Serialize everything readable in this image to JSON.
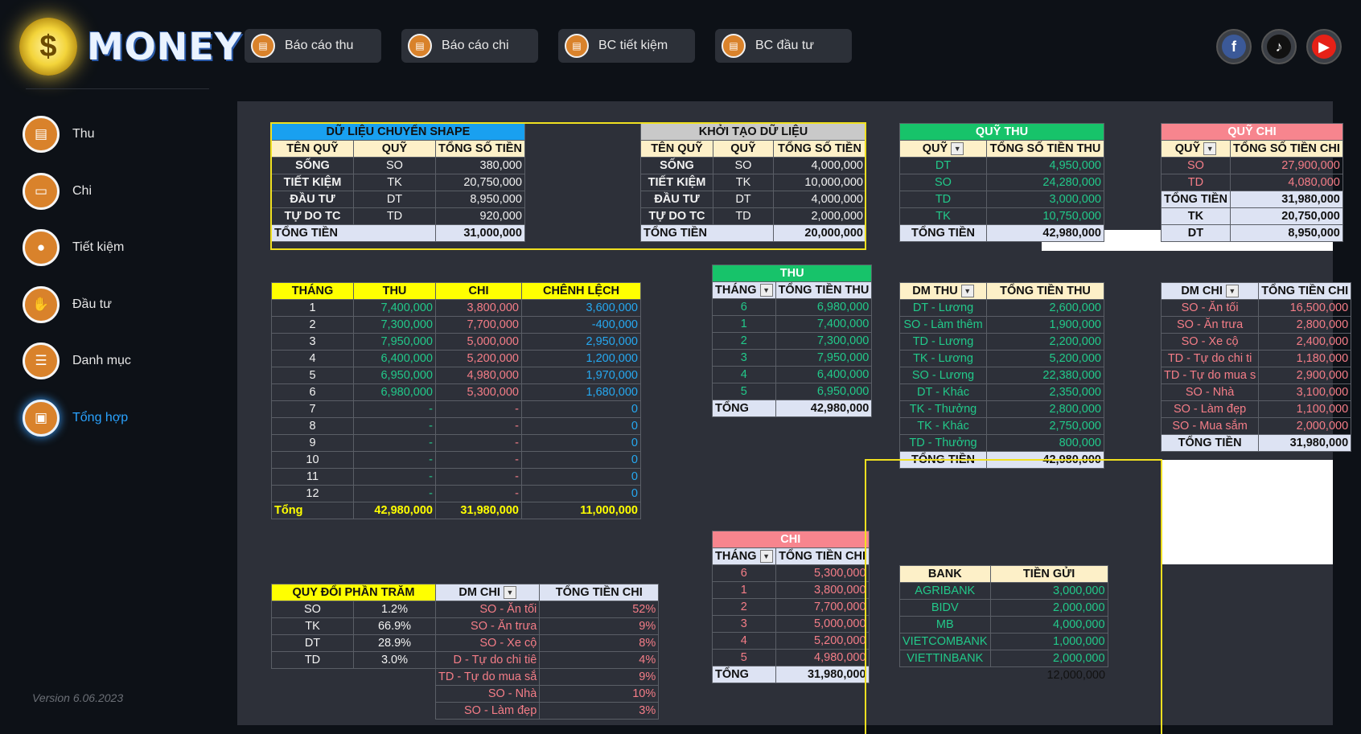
{
  "app": {
    "title": "MONEY",
    "version": "Version 6.06.2023"
  },
  "nav": [
    {
      "label": "Thu",
      "icon": "receipt-icon"
    },
    {
      "label": "Chi",
      "icon": "wallet-icon"
    },
    {
      "label": "Tiết kiệm",
      "icon": "piggy-bank-icon"
    },
    {
      "label": "Đầu tư",
      "icon": "handshake-icon"
    },
    {
      "label": "Danh mục",
      "icon": "clipboard-icon"
    },
    {
      "label": "Tổng hợp",
      "icon": "dashboard-icon"
    }
  ],
  "top_buttons": [
    "Báo cáo thu",
    "Báo cáo chi",
    "BC tiết kiệm",
    "BC đầu tư"
  ],
  "social": [
    {
      "name": "facebook",
      "glyph": "f",
      "color": "#3b5998"
    },
    {
      "name": "tiktok",
      "glyph": "♪",
      "color": "#111111"
    },
    {
      "name": "youtube",
      "glyph": "▶",
      "color": "#e62117"
    }
  ],
  "shape_data": {
    "title": "DỮ LIỆU CHUYỂN SHAPE",
    "headers": [
      "TÊN QUỸ",
      "QUỸ",
      "TỔNG SỐ TIỀN"
    ],
    "rows": [
      [
        "SỐNG",
        "SO",
        "380,000"
      ],
      [
        "TIẾT KIỆM",
        "TK",
        "20,750,000"
      ],
      [
        "ĐẦU TƯ",
        "DT",
        "8,950,000"
      ],
      [
        "TỰ DO TC",
        "TD",
        "920,000"
      ]
    ],
    "total_label": "TỔNG TIỀN",
    "total": "31,000,000"
  },
  "init_data": {
    "title": "KHỞI TẠO DỮ LIỆU",
    "headers": [
      "TÊN QUỸ",
      "QUỸ",
      "TỔNG SỐ TIỀN"
    ],
    "rows": [
      [
        "SỐNG",
        "SO",
        "4,000,000"
      ],
      [
        "TIẾT KIỆM",
        "TK",
        "10,000,000"
      ],
      [
        "ĐẦU TƯ",
        "DT",
        "4,000,000"
      ],
      [
        "TỰ DO TC",
        "TD",
        "2,000,000"
      ]
    ],
    "total_label": "TỔNG TIỀN",
    "total": "20,000,000"
  },
  "quy_thu": {
    "title": "QUỸ THU",
    "headers": [
      "QUỸ",
      "TỔNG SỐ TIỀN THU"
    ],
    "rows": [
      [
        "DT",
        "4,950,000"
      ],
      [
        "SO",
        "24,280,000"
      ],
      [
        "TD",
        "3,000,000"
      ],
      [
        "TK",
        "10,750,000"
      ]
    ],
    "total_label": "TỔNG TIỀN",
    "total": "42,980,000"
  },
  "quy_chi": {
    "title": "QUỸ CHI",
    "headers": [
      "QUỸ",
      "TỔNG SỐ TIỀN CHI"
    ],
    "rows": [
      [
        "SO",
        "27,900,000"
      ],
      [
        "TD",
        "4,080,000"
      ]
    ],
    "total_label": "TỔNG TIỀN",
    "total": "31,980,000",
    "extra": [
      [
        "TK",
        "20,750,000"
      ],
      [
        "DT",
        "8,950,000"
      ]
    ]
  },
  "monthly": {
    "headers": [
      "THÁNG",
      "THU",
      "CHI",
      "CHÊNH LỆCH"
    ],
    "rows": [
      [
        "1",
        "7,400,000",
        "3,800,000",
        "3,600,000"
      ],
      [
        "2",
        "7,300,000",
        "7,700,000",
        "-400,000"
      ],
      [
        "3",
        "7,950,000",
        "5,000,000",
        "2,950,000"
      ],
      [
        "4",
        "6,400,000",
        "5,200,000",
        "1,200,000"
      ],
      [
        "5",
        "6,950,000",
        "4,980,000",
        "1,970,000"
      ],
      [
        "6",
        "6,980,000",
        "5,300,000",
        "1,680,000"
      ],
      [
        "7",
        "-",
        "-",
        "0"
      ],
      [
        "8",
        "-",
        "-",
        "0"
      ],
      [
        "9",
        "-",
        "-",
        "0"
      ],
      [
        "10",
        "-",
        "-",
        "0"
      ],
      [
        "11",
        "-",
        "-",
        "0"
      ],
      [
        "12",
        "-",
        "-",
        "0"
      ]
    ],
    "total": [
      "Tổng",
      "42,980,000",
      "31,980,000",
      "11,000,000"
    ]
  },
  "thu_by_month": {
    "title": "THU",
    "headers": [
      "THÁNG",
      "TỔNG TIỀN THU"
    ],
    "rows": [
      [
        "6",
        "6,980,000"
      ],
      [
        "1",
        "7,400,000"
      ],
      [
        "2",
        "7,300,000"
      ],
      [
        "3",
        "7,950,000"
      ],
      [
        "4",
        "6,400,000"
      ],
      [
        "5",
        "6,950,000"
      ]
    ],
    "total": [
      "TỔNG",
      "42,980,000"
    ]
  },
  "chi_by_month": {
    "title": "CHI",
    "headers": [
      "THÁNG",
      "TỔNG TIỀN CHI"
    ],
    "rows": [
      [
        "6",
        "5,300,000"
      ],
      [
        "1",
        "3,800,000"
      ],
      [
        "2",
        "7,700,000"
      ],
      [
        "3",
        "5,000,000"
      ],
      [
        "4",
        "5,200,000"
      ],
      [
        "5",
        "4,980,000"
      ]
    ],
    "total": [
      "TỔNG",
      "31,980,000"
    ]
  },
  "dm_thu": {
    "headers": [
      "DM THU",
      "TỔNG TIỀN THU"
    ],
    "rows": [
      [
        "DT - Lương",
        "2,600,000"
      ],
      [
        "SO - Làm thêm",
        "1,900,000"
      ],
      [
        "TD - Lương",
        "2,200,000"
      ],
      [
        "TK - Lương",
        "5,200,000"
      ],
      [
        "SO - Lương",
        "22,380,000"
      ],
      [
        "DT - Khác",
        "2,350,000"
      ],
      [
        "TK - Thưởng",
        "2,800,000"
      ],
      [
        "TK - Khác",
        "2,750,000"
      ],
      [
        "TD - Thưởng",
        "800,000"
      ]
    ],
    "total": [
      "TỔNG TIỀN",
      "42,980,000"
    ]
  },
  "dm_chi_right": {
    "headers": [
      "DM CHI",
      "TỔNG TIỀN CHI"
    ],
    "rows": [
      [
        "SO - Ăn tối",
        "16,500,000"
      ],
      [
        "SO - Ăn trưa",
        "2,800,000"
      ],
      [
        "SO - Xe cộ",
        "2,400,000"
      ],
      [
        "TD - Tự do chi ti",
        "1,180,000"
      ],
      [
        "TD - Tự do mua s",
        "2,900,000"
      ],
      [
        "SO - Nhà",
        "3,100,000"
      ],
      [
        "SO - Làm đẹp",
        "1,100,000"
      ],
      [
        "SO - Mua sắm",
        "2,000,000"
      ]
    ],
    "total": [
      "TỔNG TIỀN",
      "31,980,000"
    ]
  },
  "percent": {
    "title": "QUY ĐỔI PHẦN TRĂM",
    "rows": [
      [
        "SO",
        "1.2%"
      ],
      [
        "TK",
        "66.9%"
      ],
      [
        "DT",
        "28.9%"
      ],
      [
        "TD",
        "3.0%"
      ]
    ]
  },
  "dm_chi_left": {
    "headers": [
      "DM CHI",
      "TỔNG TIỀN CHI"
    ],
    "rows": [
      [
        "SO - Ăn tối",
        "52%"
      ],
      [
        "SO - Ăn trưa",
        "9%"
      ],
      [
        "SO - Xe cộ",
        "8%"
      ],
      [
        "D - Tự do chi tiê",
        "4%"
      ],
      [
        "TD - Tự do mua sắ",
        "9%"
      ],
      [
        "SO - Nhà",
        "10%"
      ],
      [
        "SO - Làm đẹp",
        "3%"
      ]
    ]
  },
  "bank": {
    "headers": [
      "BANK",
      "TIỀN GỬI"
    ],
    "rows": [
      [
        "AGRIBANK",
        "3,000,000"
      ],
      [
        "BIDV",
        "2,000,000"
      ],
      [
        "MB",
        "4,000,000"
      ],
      [
        "VIETCOMBANK",
        "1,000,000"
      ],
      [
        "VIETTINBANK",
        "2,000,000"
      ]
    ],
    "total": "12,000,000"
  }
}
